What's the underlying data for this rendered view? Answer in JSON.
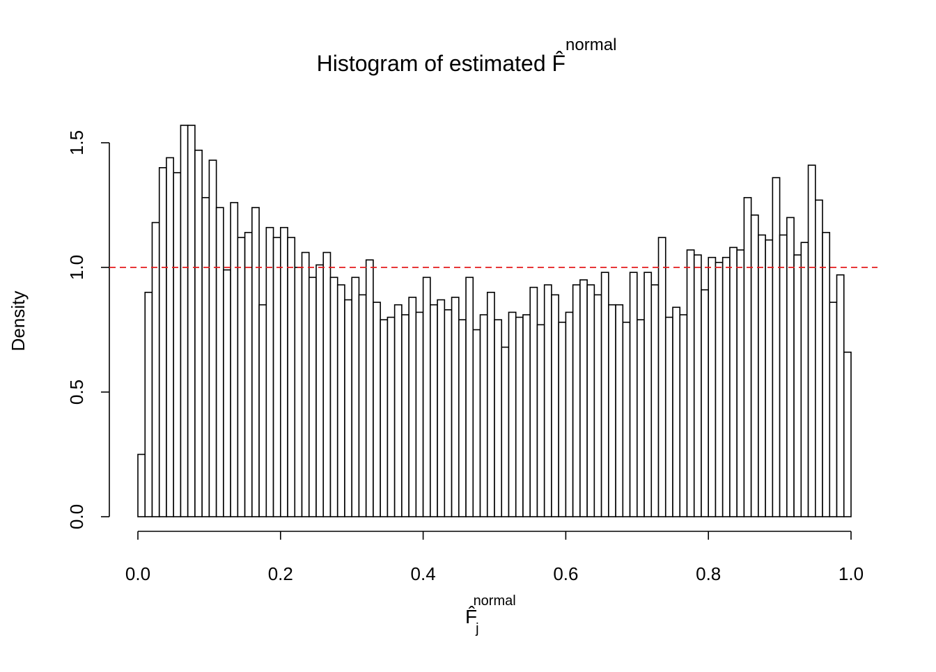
{
  "chart_data": {
    "type": "histogram",
    "title": "Histogram of estimated F̂",
    "title_superscript": "normal",
    "xlabel": "F̂",
    "xlabel_subscript": "j",
    "xlabel_superscript": "normal",
    "ylabel": "Density",
    "bins": [
      0,
      0.01,
      0.02,
      0.03,
      0.04,
      0.05,
      0.06,
      0.07,
      0.08,
      0.09,
      0.1,
      0.11,
      0.12,
      0.13,
      0.14,
      0.15,
      0.16,
      0.17,
      0.18,
      0.19,
      0.2,
      0.21,
      0.22,
      0.23,
      0.24,
      0.25,
      0.26,
      0.27,
      0.28,
      0.29,
      0.3,
      0.31,
      0.32,
      0.33,
      0.34,
      0.35,
      0.36,
      0.37,
      0.38,
      0.39,
      0.4,
      0.41,
      0.42,
      0.43,
      0.44,
      0.45,
      0.46,
      0.47,
      0.48,
      0.49,
      0.5,
      0.51,
      0.52,
      0.53,
      0.54,
      0.55,
      0.56,
      0.57,
      0.58,
      0.59,
      0.6,
      0.61,
      0.62,
      0.63,
      0.64,
      0.65,
      0.66,
      0.67,
      0.68,
      0.69,
      0.7,
      0.71,
      0.72,
      0.73,
      0.74,
      0.75,
      0.76,
      0.77,
      0.78,
      0.79,
      0.8,
      0.81,
      0.82,
      0.83,
      0.84,
      0.85,
      0.86,
      0.87,
      0.88,
      0.89,
      0.9,
      0.91,
      0.92,
      0.93,
      0.94,
      0.95,
      0.96,
      0.97,
      0.98,
      0.99,
      1
    ],
    "values": [
      0.25,
      0.9,
      1.18,
      1.4,
      1.44,
      1.38,
      1.57,
      1.57,
      1.47,
      1.28,
      1.43,
      1.24,
      0.99,
      1.26,
      1.12,
      1.14,
      1.24,
      0.85,
      1.16,
      1.12,
      1.16,
      1.12,
      1.0,
      1.06,
      0.96,
      1.01,
      1.06,
      0.96,
      0.93,
      0.87,
      0.96,
      0.89,
      1.03,
      0.86,
      0.79,
      0.8,
      0.85,
      0.81,
      0.88,
      0.82,
      0.96,
      0.85,
      0.87,
      0.83,
      0.88,
      0.79,
      0.96,
      0.75,
      0.81,
      0.9,
      0.79,
      0.68,
      0.82,
      0.8,
      0.81,
      0.92,
      0.77,
      0.93,
      0.89,
      0.78,
      0.82,
      0.93,
      0.95,
      0.93,
      0.89,
      0.98,
      0.85,
      0.85,
      0.78,
      0.98,
      0.79,
      0.98,
      0.93,
      1.12,
      0.8,
      0.84,
      0.81,
      1.07,
      1.05,
      0.91,
      1.04,
      1.02,
      1.04,
      1.08,
      1.07,
      1.28,
      1.21,
      1.13,
      1.11,
      1.36,
      1.13,
      1.2,
      1.05,
      1.1,
      1.41,
      1.27,
      1.14,
      0.86,
      0.97,
      0.66
    ],
    "fill": "#ffffff",
    "edge_color": "#000000",
    "xlim": [
      0,
      1
    ],
    "xticks": [
      {
        "value": 0,
        "label": "0.0"
      },
      0.2,
      0.4,
      0.6,
      0.8,
      {
        "value": 1,
        "label": "1.0"
      }
    ],
    "ylim": [
      0,
      1.5
    ],
    "yticks": [
      {
        "value": 0,
        "label": "0.0"
      },
      0.5,
      {
        "value": 1,
        "label": "1.0"
      },
      1.5
    ],
    "hline": {
      "value": 1,
      "color": "#e41a1c",
      "dashed": true
    }
  }
}
